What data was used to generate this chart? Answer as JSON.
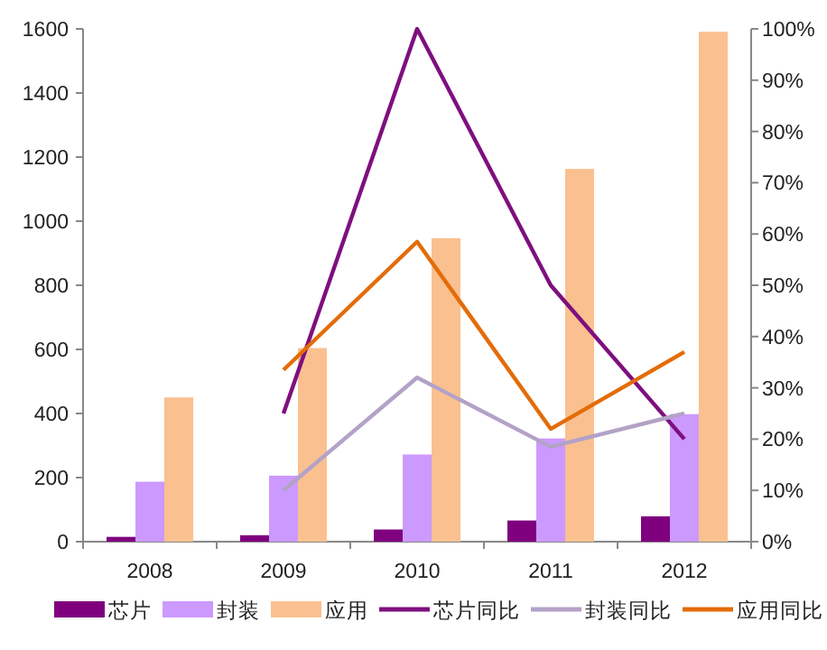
{
  "chart_data": {
    "type": "bar",
    "categories": [
      "2008",
      "2009",
      "2010",
      "2011",
      "2012"
    ],
    "series": [
      {
        "name": "芯片",
        "color": "#7f007f",
        "values": [
          15,
          20,
          38,
          66,
          79
        ]
      },
      {
        "name": "封装",
        "color": "#cc99ff",
        "values": [
          187,
          206,
          272,
          322,
          398
        ]
      },
      {
        "name": "应用",
        "color": "#fac090",
        "values": [
          450,
          604,
          947,
          1163,
          1591
        ]
      },
      {
        "name": "芯片同比",
        "type": "line",
        "axis": "y2",
        "color": "#7f0f7f",
        "values": [
          null,
          25,
          100,
          50,
          20
        ]
      },
      {
        "name": "封装同比",
        "type": "line",
        "axis": "y2",
        "color": "#b3a2c7",
        "values": [
          null,
          10,
          32,
          18.5,
          25
        ]
      },
      {
        "name": "应用同比",
        "type": "line",
        "axis": "y2",
        "color": "#e36c09",
        "values": [
          null,
          33.5,
          58.5,
          22,
          37
        ]
      }
    ],
    "ylim": [
      0,
      1600
    ],
    "yticks": [
      0,
      200,
      400,
      600,
      800,
      1000,
      1200,
      1400,
      1600
    ],
    "y2lim": [
      0,
      100
    ],
    "y2ticks": [
      {
        "value": 0,
        "label": "0%"
      },
      {
        "value": 10,
        "label": "10%"
      },
      {
        "value": 20,
        "label": "20%"
      },
      {
        "value": 30,
        "label": "30%"
      },
      {
        "value": 40,
        "label": "40%"
      },
      {
        "value": 50,
        "label": "50%"
      },
      {
        "value": 60,
        "label": "60%"
      },
      {
        "value": 70,
        "label": "70%"
      },
      {
        "value": 80,
        "label": "80%"
      },
      {
        "value": 90,
        "label": "90%"
      },
      {
        "value": 100,
        "label": "100%"
      }
    ],
    "legend": "bottom"
  }
}
